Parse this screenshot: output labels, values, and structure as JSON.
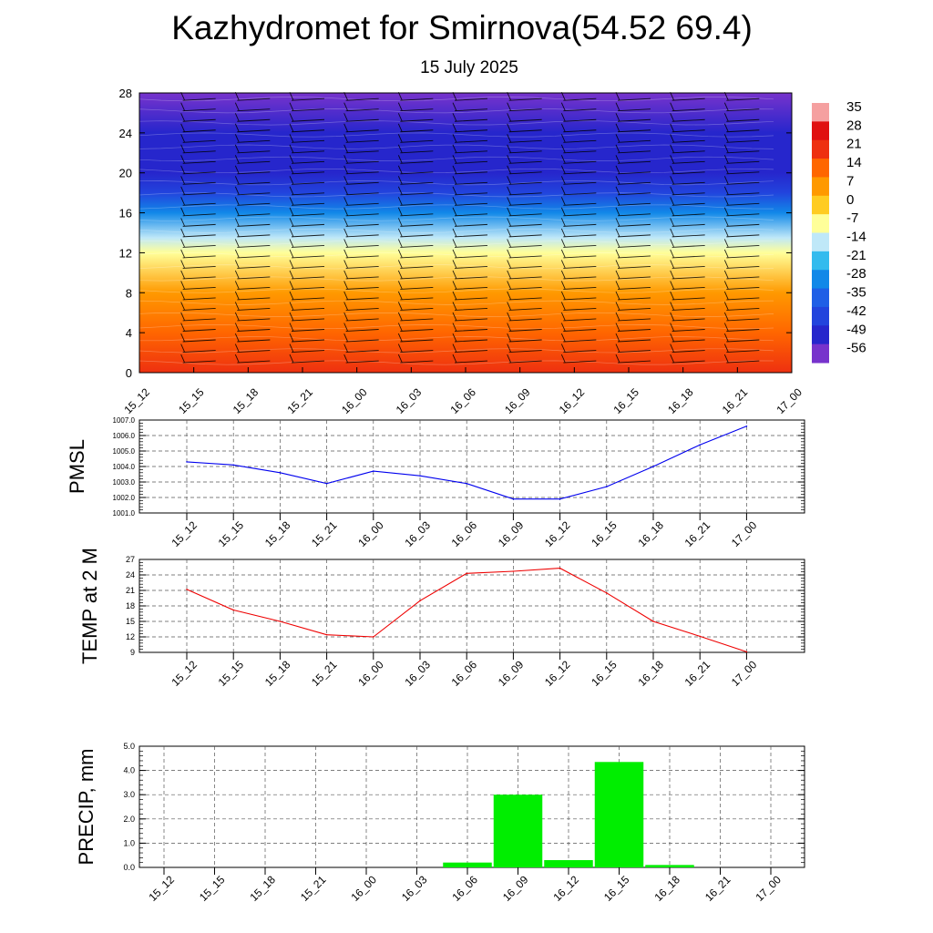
{
  "header": {
    "title": "Kazhydromet for Smirnova(54.52 69.4)",
    "subtitle": "15 July 2025"
  },
  "colors": {
    "pmsl_line": "#0000ee",
    "temp_line": "#ee0000",
    "precip_bar": "#00ee00",
    "grid": "#555555",
    "barb": "#000000"
  },
  "chart_data": [
    {
      "id": "cross_section",
      "type": "heatmap",
      "title": "",
      "xlabel": "",
      "ylabel": "",
      "x": [
        "15_12",
        "15_15",
        "15_18",
        "15_21",
        "16_00",
        "16_03",
        "16_06",
        "16_09",
        "16_12",
        "16_15",
        "16_18",
        "16_21",
        "17_00"
      ],
      "ylim": [
        0,
        28
      ],
      "yticks": [
        "0",
        "4",
        "8",
        "12",
        "16",
        "20",
        "24",
        "28"
      ],
      "colorbar": {
        "labels": [
          "35",
          "28",
          "21",
          "14",
          "7",
          "0",
          "-7",
          "-14",
          "-21",
          "-28",
          "-35",
          "-42",
          "-49",
          "-56"
        ],
        "colors": [
          "#f5a0a0",
          "#e01010",
          "#ee3010",
          "#ff6600",
          "#ff9900",
          "#ffcc22",
          "#ffff99",
          "#bfe8f8",
          "#33bbee",
          "#1188e8",
          "#1f5fe6",
          "#2244dd",
          "#2626cc",
          "#7733cc"
        ]
      },
      "profile": [
        {
          "level": 0,
          "value": 22
        },
        {
          "level": 4,
          "value": 15
        },
        {
          "level": 8,
          "value": 6
        },
        {
          "level": 12,
          "value": -5
        },
        {
          "level": 13.5,
          "value": -12
        },
        {
          "level": 16,
          "value": -28
        },
        {
          "level": 18,
          "value": -44
        },
        {
          "level": 20,
          "value": -50
        },
        {
          "level": 24,
          "value": -52
        },
        {
          "level": 28,
          "value": -55
        }
      ]
    },
    {
      "id": "pmsl",
      "type": "line",
      "ylabel": "PMSL",
      "categories": [
        "15_12",
        "15_15",
        "15_18",
        "15_21",
        "16_00",
        "16_03",
        "16_06",
        "16_09",
        "16_12",
        "16_15",
        "16_18",
        "16_21",
        "17_00"
      ],
      "ylim": [
        1001.0,
        1007.0
      ],
      "yticks": [
        "1001.0",
        "1002.0",
        "1003.0",
        "1004.0",
        "1005.0",
        "1006.0",
        "1007.0"
      ],
      "values": [
        1004.3,
        1004.1,
        1003.6,
        1002.9,
        1003.7,
        1003.4,
        1002.9,
        1001.9,
        1001.9,
        1002.7,
        1004.0,
        1005.4,
        1006.6
      ]
    },
    {
      "id": "temp",
      "type": "line",
      "ylabel": "TEMP at 2 M",
      "categories": [
        "15_12",
        "15_15",
        "15_18",
        "15_21",
        "16_00",
        "16_03",
        "16_06",
        "16_09",
        "16_12",
        "16_15",
        "16_18",
        "16_21",
        "17_00"
      ],
      "ylim": [
        9,
        27
      ],
      "yticks": [
        "9",
        "12",
        "15",
        "18",
        "21",
        "24",
        "27"
      ],
      "values": [
        21.2,
        17.2,
        15.0,
        12.4,
        12.0,
        19.0,
        24.3,
        24.7,
        25.3,
        20.5,
        15.0,
        12.1,
        9.1
      ]
    },
    {
      "id": "precip",
      "type": "bar",
      "ylabel": "PRECIP, mm",
      "categories": [
        "15_12",
        "15_15",
        "15_18",
        "15_21",
        "16_00",
        "16_03",
        "16_06",
        "16_09",
        "16_12",
        "16_15",
        "16_18",
        "16_21",
        "17_00"
      ],
      "ylim": [
        0.0,
        5.0
      ],
      "yticks": [
        "0.0",
        "1.0",
        "2.0",
        "3.0",
        "4.0",
        "5.0"
      ],
      "values": [
        0,
        0,
        0,
        0,
        0,
        0,
        0.2,
        3.0,
        0.3,
        4.35,
        0.1,
        0,
        0
      ]
    }
  ]
}
